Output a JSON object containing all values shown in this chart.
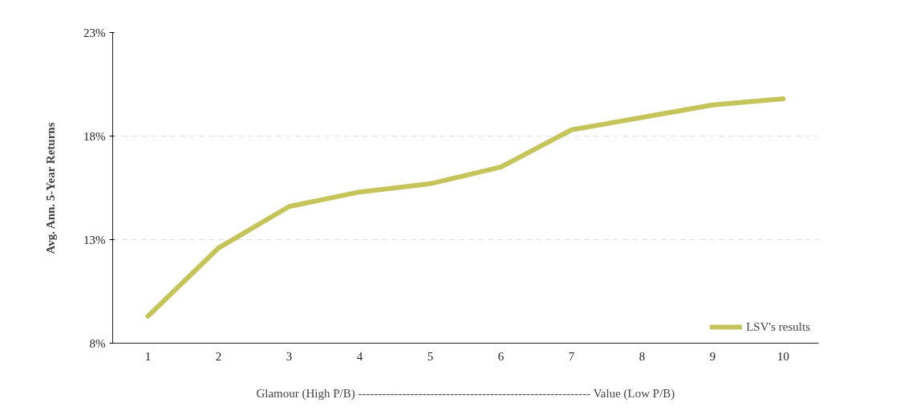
{
  "chart_data": {
    "type": "line",
    "ylabel": "Avg. Ann. 5-Year Returns",
    "xlabel": "Glamour (High P/B) ---------------------------------------------------------- Value (Low P/B)",
    "categories": [
      "1",
      "2",
      "3",
      "4",
      "5",
      "6",
      "7",
      "8",
      "9",
      "10"
    ],
    "series": [
      {
        "name": "LSV's results",
        "color": "#c4c45a",
        "values": [
          9.3,
          12.6,
          14.6,
          15.3,
          15.7,
          16.5,
          18.3,
          18.9,
          19.5,
          19.8
        ]
      }
    ],
    "ylim": [
      8,
      23
    ],
    "yticks": [
      {
        "value": 8,
        "label": "8%"
      },
      {
        "value": 13,
        "label": "13%"
      },
      {
        "value": 18,
        "label": "18%"
      },
      {
        "value": 23,
        "label": "23%"
      }
    ],
    "grid": "y",
    "legend": "bottom right",
    "marker": "none",
    "line_style": "solid"
  }
}
